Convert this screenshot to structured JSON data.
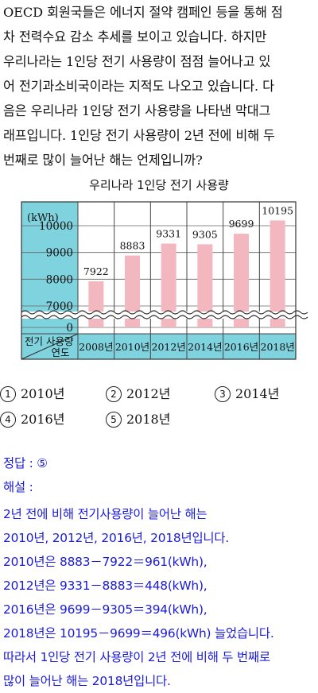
{
  "problem": {
    "lines": [
      "OECD 회원국들은 에너지 절약 캠페인 등을 통해 점",
      "차 전력수요 감소 추세를 보이고 있습니다. 하지만",
      "우리나라는 1인당 전기 사용량이 점점 늘어나고 있",
      "어 전기과소비국이라는 지적도 나오고 있습니다. 다",
      "음은 우리나라 1인당 전기 사용량을 나타낸 막대그",
      "래프입니다. 1인당 전기 사용량이 2년 전에 비해 두",
      "번째로 많이 늘어난 해는 언제입니까?"
    ]
  },
  "chart_data": {
    "type": "bar",
    "title": "우리나라 1인당 전기 사용량",
    "ylabel": "(kWh)",
    "xlabel": "연도",
    "corner_label": "전기 사용량",
    "categories": [
      "2008년",
      "2010년",
      "2012년",
      "2014년",
      "2016년",
      "2018년"
    ],
    "values": [
      7922,
      8883,
      9331,
      9305,
      9699,
      10195
    ],
    "yticks": [
      "10000",
      "9000",
      "8000",
      "7000",
      "0"
    ],
    "ylim": [
      7000,
      10500
    ],
    "axis_break": true,
    "grid": true,
    "bar_color": "#f3b7bf",
    "axis_panel_color": "#7fd3de"
  },
  "choices": [
    {
      "num": "1",
      "label": "2010년"
    },
    {
      "num": "2",
      "label": "2012년"
    },
    {
      "num": "3",
      "label": "2014년"
    },
    {
      "num": "4",
      "label": "2016년"
    },
    {
      "num": "5",
      "label": "2018년"
    }
  ],
  "solution": {
    "answer": "정답 : ⑤",
    "heading": "해설 :",
    "lines": [
      "2년 전에 비해 전기사용량이 늘어난 해는",
      "2010년, 2012년, 2016년, 2018년입니다.",
      "2010년은 8883－7922＝961(kWh),",
      "2012년은 9331－8883＝448(kWh),",
      "2016년은 9699－9305＝394(kWh),",
      "2018년은 10195－9699＝496(kWh) 늘었습니다.",
      "따라서 1인당 전기 사용량이 2년 전에 비해 두 번째로",
      "많이 늘어난 해는 2018년입니다."
    ]
  },
  "colors": {
    "solution_text": "#1a1adb"
  }
}
